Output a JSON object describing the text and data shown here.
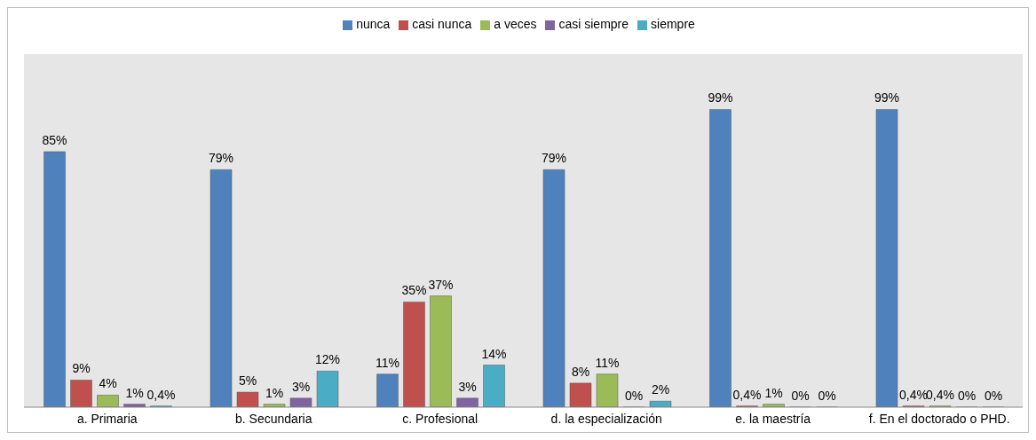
{
  "chart_data": {
    "type": "bar",
    "categories": [
      "a.    Primaria",
      "b.    Secundaria",
      "c.    Profesional",
      "d.    la especialización",
      "e.    la maestría",
      "f.    En el doctorado o PHD."
    ],
    "series": [
      {
        "name": "nunca",
        "color": "#4f81bd",
        "values": [
          85,
          79,
          11,
          79,
          99,
          99
        ],
        "value_labels": [
          "85%",
          "79%",
          "11%",
          "79%",
          "99%",
          "99%"
        ]
      },
      {
        "name": "casi nunca",
        "color": "#c0504d",
        "values": [
          9,
          5,
          35,
          8,
          0.4,
          0.4
        ],
        "value_labels": [
          "9%",
          "5%",
          "35%",
          "8%",
          "0,4%",
          "0,4%"
        ]
      },
      {
        "name": "a veces",
        "color": "#9bbb59",
        "values": [
          4,
          1,
          37,
          11,
          1,
          0.4
        ],
        "value_labels": [
          "4%",
          "1%",
          "37%",
          "11%",
          "1%",
          "0,4%"
        ]
      },
      {
        "name": "casi siempre",
        "color": "#8064a2",
        "values": [
          1,
          3,
          3,
          0,
          0,
          0
        ],
        "value_labels": [
          "1%",
          "3%",
          "3%",
          "0%",
          "0%",
          "0%"
        ]
      },
      {
        "name": "siempre",
        "color": "#4bacc6",
        "values": [
          0.4,
          12,
          14,
          2,
          0,
          0
        ],
        "value_labels": [
          "0,4%",
          "12%",
          "14%",
          "2%",
          "0%",
          "0%"
        ]
      }
    ],
    "legend": "top",
    "grid": false
  }
}
